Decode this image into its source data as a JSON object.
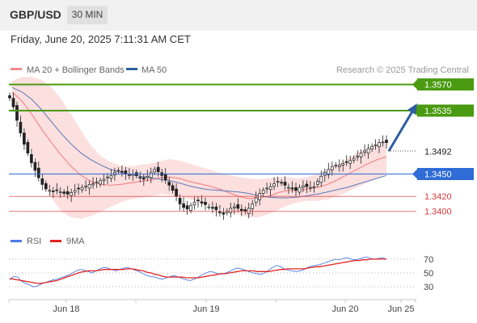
{
  "header": {
    "symbol": "GBP/USD",
    "timeframe": "30 MIN"
  },
  "datetime": "Friday, June 20, 2025 7:11:31 AM CET",
  "chart_data": [
    {
      "type": "candlestick",
      "legend": [
        {
          "label": "MA 20 + Bollinger Bands",
          "color": "#f28a8a"
        },
        {
          "label": "MA 50",
          "color": "#2d5fa0"
        }
      ],
      "watermark": "Research © 2025 Trading Central",
      "x_ticks": [
        "Jun 18",
        "Jun 19",
        "Jun 20",
        "Jun 25"
      ],
      "ylim": [
        1.3378,
        1.3588
      ],
      "last_price": "1.3492",
      "levels": [
        {
          "label": "1.3570",
          "value": 1.357,
          "kind": "resistance",
          "color": "#4a9a12"
        },
        {
          "label": "1.3535",
          "value": 1.3535,
          "kind": "resistance",
          "color": "#4a9a12"
        },
        {
          "label": "1.3450",
          "value": 1.345,
          "kind": "pivot",
          "color": "#2f6cd6"
        },
        {
          "label": "1.3420",
          "value": 1.342,
          "kind": "support",
          "color": "#d83a3a"
        },
        {
          "label": "1.3400",
          "value": 1.34,
          "kind": "support",
          "color": "#d83a3a"
        }
      ],
      "close_path": [
        1.3552,
        1.354,
        1.3522,
        1.3505,
        1.349,
        1.3478,
        1.3465,
        1.3455,
        1.3445,
        1.3436,
        1.343,
        1.3428,
        1.3427,
        1.3428,
        1.3426,
        1.3424,
        1.3423,
        1.3425,
        1.3428,
        1.343,
        1.3432,
        1.3434,
        1.3436,
        1.3437,
        1.3439,
        1.3441,
        1.3443,
        1.3446,
        1.3448,
        1.3452,
        1.3455,
        1.3453,
        1.3451,
        1.3449,
        1.345,
        1.3448,
        1.3445,
        1.3443,
        1.3447,
        1.3452,
        1.3456,
        1.3453,
        1.3448,
        1.3442,
        1.3435,
        1.3428,
        1.342,
        1.341,
        1.3405,
        1.3403,
        1.3408,
        1.3412,
        1.3414,
        1.3411,
        1.3409,
        1.3406,
        1.3404,
        1.3402,
        1.3398,
        1.3396,
        1.34,
        1.3404,
        1.3406,
        1.3404,
        1.3401,
        1.34,
        1.3404,
        1.341,
        1.3418,
        1.3424,
        1.3428,
        1.3431,
        1.3433,
        1.3437,
        1.344,
        1.3438,
        1.3435,
        1.3432,
        1.343,
        1.3428,
        1.3432,
        1.3434,
        1.3433,
        1.3432,
        1.3433,
        1.344,
        1.3447,
        1.3452,
        1.3456,
        1.346,
        1.3462,
        1.3462,
        1.3464,
        1.3466,
        1.3468,
        1.3471,
        1.3474,
        1.3478,
        1.3481,
        1.3484,
        1.3487,
        1.3489,
        1.3492,
        1.3493,
        1.3492
      ],
      "ma20": [
        1.356,
        1.3548,
        1.353,
        1.351,
        1.3492,
        1.3475,
        1.346,
        1.3448,
        1.344,
        1.3436,
        1.3435,
        1.3436,
        1.3438,
        1.344,
        1.3442,
        1.3445,
        1.3446,
        1.3444,
        1.344,
        1.3437,
        1.3434,
        1.343,
        1.3425,
        1.342,
        1.3417,
        1.3418,
        1.342,
        1.3425,
        1.3428,
        1.3428,
        1.343,
        1.3432,
        1.3436,
        1.3442,
        1.3449,
        1.3456,
        1.3463,
        1.3469,
        1.3473
      ],
      "ma50": [
        1.3566,
        1.356,
        1.355,
        1.3536,
        1.352,
        1.3504,
        1.349,
        1.3478,
        1.3469,
        1.3462,
        1.3456,
        1.3452,
        1.3449,
        1.3447,
        1.3445,
        1.3443,
        1.3441,
        1.3438,
        1.3434,
        1.3431,
        1.3429,
        1.3428,
        1.3427,
        1.3426,
        1.3424,
        1.3421,
        1.3419,
        1.3418,
        1.3418,
        1.3419,
        1.3421,
        1.3423,
        1.3426,
        1.3429,
        1.3432,
        1.3436,
        1.344,
        1.3444,
        1.3448
      ],
      "bb_upper": [
        1.3575,
        1.358,
        1.358,
        1.3576,
        1.3566,
        1.355,
        1.353,
        1.3508,
        1.3488,
        1.3474,
        1.3466,
        1.3461,
        1.346,
        1.3462,
        1.3464,
        1.3467,
        1.347,
        1.3468,
        1.3464,
        1.346,
        1.3456,
        1.3452,
        1.3449,
        1.3446,
        1.3444,
        1.3443,
        1.3444,
        1.3446,
        1.3446,
        1.3444,
        1.3446,
        1.345,
        1.3456,
        1.3462,
        1.347,
        1.3478,
        1.3485,
        1.349,
        1.3494
      ],
      "bb_lower": [
        1.3545,
        1.3513,
        1.348,
        1.3448,
        1.3418,
        1.34,
        1.3392,
        1.339,
        1.3394,
        1.34,
        1.3406,
        1.3412,
        1.3416,
        1.3418,
        1.342,
        1.3423,
        1.3422,
        1.342,
        1.3416,
        1.3412,
        1.3408,
        1.3404,
        1.34,
        1.3396,
        1.3392,
        1.3392,
        1.3396,
        1.3402,
        1.3408,
        1.3412,
        1.3414,
        1.3414,
        1.3416,
        1.342,
        1.3426,
        1.3432,
        1.3438,
        1.3444,
        1.345
      ]
    },
    {
      "type": "line",
      "legend": [
        {
          "label": "RSI",
          "color": "#4b7be5"
        },
        {
          "label": "9MA",
          "color": "#e32222"
        }
      ],
      "y_ticks": [
        "70",
        "50",
        "30"
      ],
      "ylim": [
        15,
        85
      ],
      "series": [
        {
          "name": "RSI",
          "values": [
            40,
            45,
            44,
            38,
            35,
            33,
            30,
            31,
            34,
            36,
            38,
            40,
            41,
            43,
            45,
            47,
            50,
            53,
            55,
            54,
            52,
            50,
            53,
            56,
            58,
            57,
            55,
            53,
            55,
            57,
            58,
            56,
            54,
            52,
            49,
            46,
            45,
            44,
            42,
            41,
            43,
            45,
            46,
            44,
            42,
            40,
            39,
            41,
            44,
            47,
            50,
            52,
            51,
            49,
            48,
            50,
            52,
            55,
            57,
            56,
            54,
            52,
            50,
            49,
            48,
            50,
            54,
            58,
            61,
            59,
            56,
            54,
            53,
            52,
            53,
            55,
            58,
            60,
            61,
            62,
            64,
            66,
            68,
            70,
            69,
            71,
            72,
            70,
            69,
            70,
            72,
            73,
            71,
            70,
            71,
            72,
            70
          ]
        },
        {
          "name": "9MA",
          "values": [
            42,
            41,
            40,
            39,
            38,
            37,
            36,
            35,
            35,
            36,
            37,
            38,
            39,
            41,
            43,
            45,
            47,
            49,
            51,
            52,
            53,
            53,
            53,
            54,
            55,
            55,
            55,
            55,
            55,
            55,
            56,
            56,
            55,
            54,
            53,
            51,
            50,
            48,
            47,
            45,
            44,
            44,
            44,
            44,
            44,
            43,
            43,
            43,
            43,
            44,
            45,
            46,
            47,
            48,
            49,
            49,
            50,
            51,
            52,
            53,
            53,
            53,
            53,
            52,
            52,
            52,
            52,
            53,
            54,
            55,
            55,
            56,
            56,
            56,
            56,
            56,
            57,
            58,
            59,
            59,
            60,
            61,
            62,
            63,
            64,
            65,
            66,
            67,
            68,
            68,
            69,
            69,
            70,
            70,
            70,
            70,
            70
          ]
        }
      ]
    }
  ]
}
